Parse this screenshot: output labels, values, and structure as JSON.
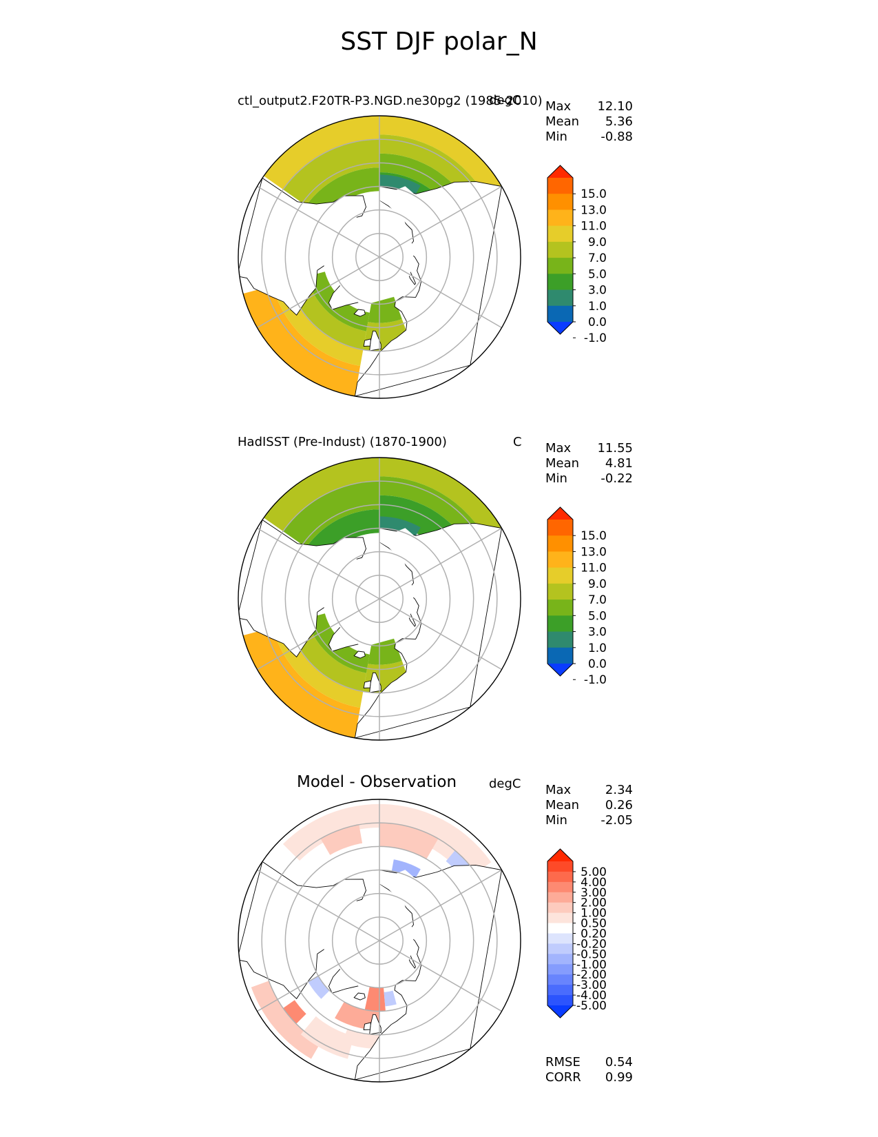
{
  "figure": {
    "title": "SST DJF polar_N"
  },
  "chart_data": [
    {
      "type": "heatmap",
      "projection": "north-polar-stereographic",
      "title": "ctl_output2.F20TR-P3.NGD.ne30pg2 (1985-2010)",
      "units": "degC",
      "stats": [
        {
          "label": "Max",
          "value": "12.10"
        },
        {
          "label": "Mean",
          "value": "5.36"
        },
        {
          "label": "Min",
          "value": "-0.88"
        }
      ],
      "colorbar": {
        "ticks": [
          "15.0",
          "13.0",
          "11.0",
          "9.0",
          "7.0",
          "5.0",
          "3.0",
          "1.0",
          "0.0",
          "-1.0"
        ],
        "colors": [
          "#ff2a00",
          "#ff6600",
          "#ff9000",
          "#ffb31a",
          "#e6cd2a",
          "#b4c31f",
          "#78b41a",
          "#3c9f28",
          "#2f8a6e",
          "#0a68b4",
          "#0a3cff"
        ],
        "extend": "both"
      }
    },
    {
      "type": "heatmap",
      "projection": "north-polar-stereographic",
      "title": "HadISST (Pre-Indust) (1870-1900)",
      "units": "C",
      "stats": [
        {
          "label": "Max",
          "value": "11.55"
        },
        {
          "label": "Mean",
          "value": "4.81"
        },
        {
          "label": "Min",
          "value": "-0.22"
        }
      ],
      "colorbar": {
        "ticks": [
          "15.0",
          "13.0",
          "11.0",
          "9.0",
          "7.0",
          "5.0",
          "3.0",
          "1.0",
          "0.0",
          "-1.0"
        ],
        "colors": [
          "#ff2a00",
          "#ff6600",
          "#ff9000",
          "#ffb31a",
          "#e6cd2a",
          "#b4c31f",
          "#78b41a",
          "#3c9f28",
          "#2f8a6e",
          "#0a68b4",
          "#0a3cff"
        ],
        "extend": "both"
      }
    },
    {
      "type": "heatmap",
      "projection": "north-polar-stereographic",
      "title": "Model - Observation",
      "units": "degC",
      "stats": [
        {
          "label": "Max",
          "value": "2.34"
        },
        {
          "label": "Mean",
          "value": "0.26"
        },
        {
          "label": "Min",
          "value": "-2.05"
        }
      ],
      "extra_stats": [
        {
          "label": "RMSE",
          "value": "0.54"
        },
        {
          "label": "CORR",
          "value": "0.99"
        }
      ],
      "colorbar": {
        "ticks": [
          "5.00",
          "4.00",
          "3.00",
          "2.00",
          "1.00",
          "0.50",
          "0.20",
          "-0.20",
          "-0.50",
          "-1.00",
          "-2.00",
          "-3.00",
          "-4.00",
          "-5.00"
        ],
        "colors": [
          "#ff2a00",
          "#fd4a28",
          "#fd6a4c",
          "#fd8a72",
          "#fdab98",
          "#fdcbbe",
          "#fde4dc",
          "#ffffff",
          "#dde4fd",
          "#c0ccfd",
          "#a2b4fd",
          "#859cfd",
          "#6884fd",
          "#4a6cfd",
          "#2c54fd",
          "#0a3cff"
        ],
        "extend": "both"
      }
    }
  ]
}
